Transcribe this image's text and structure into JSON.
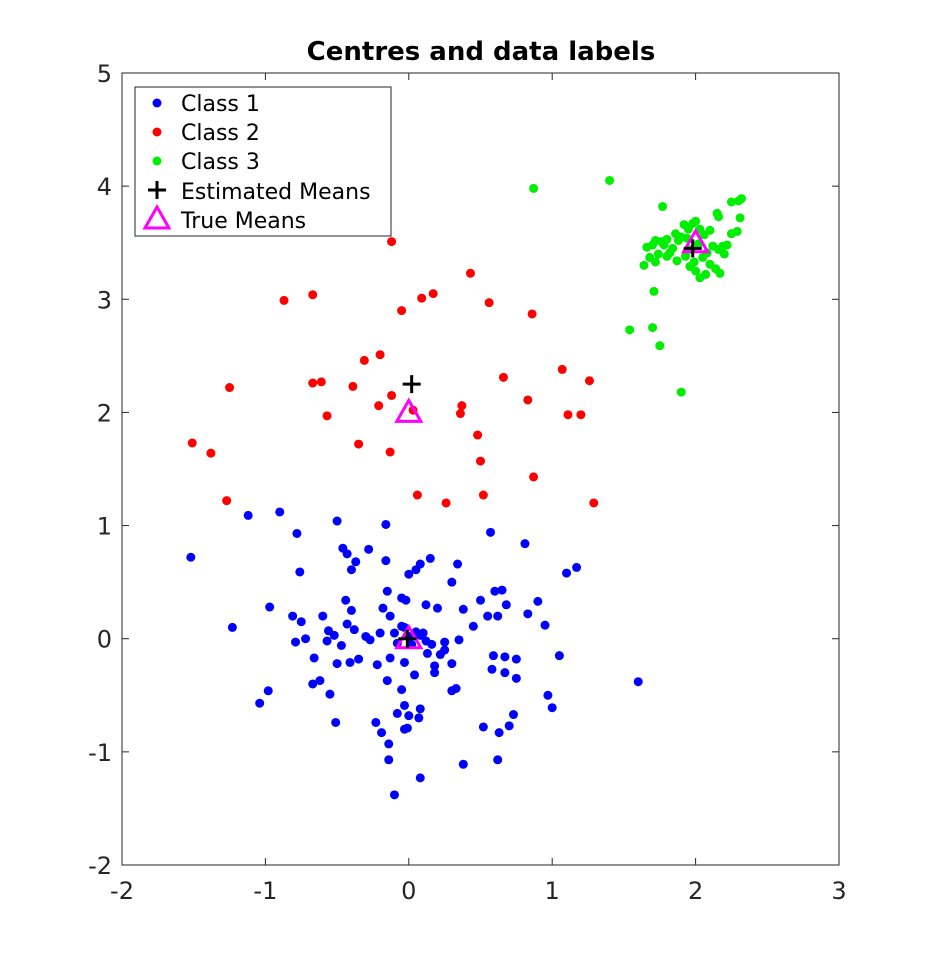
{
  "chart_data": {
    "type": "scatter",
    "title": "Centres and data labels",
    "xlabel": "",
    "ylabel": "",
    "xlim": [
      -2,
      3
    ],
    "ylim": [
      -2,
      5
    ],
    "xticks": [
      -2,
      -1,
      0,
      1,
      2,
      3
    ],
    "yticks": [
      -2,
      -1,
      0,
      1,
      2,
      3,
      4,
      5
    ],
    "xtick_labels": [
      "-2",
      "-1",
      "0",
      "1",
      "2",
      "3"
    ],
    "ytick_labels": [
      "-2",
      "-1",
      "0",
      "1",
      "2",
      "3",
      "4",
      "5"
    ],
    "grid": false,
    "legend_position": "top-left",
    "series": [
      {
        "name": "Class 1",
        "color": "#0000ff",
        "marker": "dot",
        "points": [
          [
            -1.52,
            0.72
          ],
          [
            -1.12,
            1.09
          ],
          [
            -0.9,
            1.12
          ],
          [
            -0.78,
            0.93
          ],
          [
            -0.76,
            0.59
          ],
          [
            -1.23,
            0.1
          ],
          [
            -0.97,
            0.28
          ],
          [
            -0.98,
            -0.46
          ],
          [
            -1.04,
            -0.57
          ],
          [
            -0.81,
            0.2
          ],
          [
            -0.79,
            -0.03
          ],
          [
            -0.72,
            0.0
          ],
          [
            -0.75,
            0.15
          ],
          [
            -0.66,
            -0.17
          ],
          [
            -0.6,
            0.2
          ],
          [
            -0.56,
            0.07
          ],
          [
            -0.57,
            -0.02
          ],
          [
            -0.52,
            0.03
          ],
          [
            -0.5,
            -0.22
          ],
          [
            -0.47,
            -0.06
          ],
          [
            -0.44,
            0.34
          ],
          [
            -0.4,
            0.25
          ],
          [
            -0.43,
            0.13
          ],
          [
            -0.38,
            0.08
          ],
          [
            -0.41,
            -0.21
          ],
          [
            -0.35,
            -0.18
          ],
          [
            -0.3,
            0.02
          ],
          [
            -0.27,
            -0.01
          ],
          [
            -0.22,
            -0.23
          ],
          [
            -0.2,
            0.05
          ],
          [
            -0.18,
            0.27
          ],
          [
            -0.15,
            0.42
          ],
          [
            -0.13,
            0.2
          ],
          [
            -0.1,
            0.05
          ],
          [
            -0.08,
            -0.04
          ],
          [
            -0.05,
            0.11
          ],
          [
            -0.03,
            0.1
          ],
          [
            0.0,
            0.02
          ],
          [
            0.02,
            -0.05
          ],
          [
            0.05,
            0.06
          ],
          [
            0.08,
            0.03
          ],
          [
            0.12,
            0.3
          ],
          [
            0.16,
            -0.05
          ],
          [
            0.18,
            -0.24
          ],
          [
            0.2,
            0.27
          ],
          [
            0.25,
            -0.1
          ],
          [
            0.3,
            -0.22
          ],
          [
            0.35,
            -0.01
          ],
          [
            0.38,
            0.26
          ],
          [
            0.45,
            0.11
          ],
          [
            0.5,
            0.34
          ],
          [
            0.55,
            0.2
          ],
          [
            0.6,
            0.42
          ],
          [
            0.62,
            0.2
          ],
          [
            0.65,
            0.43
          ],
          [
            0.68,
            0.3
          ],
          [
            0.75,
            -0.18
          ],
          [
            0.83,
            0.22
          ],
          [
            0.9,
            0.33
          ],
          [
            0.95,
            0.12
          ],
          [
            1.05,
            -0.15
          ],
          [
            0.97,
            -0.5
          ],
          [
            1.0,
            -0.61
          ],
          [
            1.6,
            -0.38
          ],
          [
            1.1,
            0.58
          ],
          [
            1.17,
            0.63
          ],
          [
            0.81,
            0.84
          ],
          [
            0.57,
            0.94
          ],
          [
            0.3,
            0.5
          ],
          [
            0.34,
            0.66
          ],
          [
            0.15,
            0.71
          ],
          [
            0.08,
            0.66
          ],
          [
            0.05,
            0.61
          ],
          [
            0.0,
            0.57
          ],
          [
            -0.05,
            0.36
          ],
          [
            -0.02,
            0.34
          ],
          [
            -0.16,
            0.69
          ],
          [
            -0.16,
            1.01
          ],
          [
            -0.28,
            0.79
          ],
          [
            -0.37,
            0.68
          ],
          [
            -0.4,
            0.61
          ],
          [
            -0.43,
            0.75
          ],
          [
            -0.46,
            0.8
          ],
          [
            -0.5,
            1.04
          ],
          [
            -0.67,
            -0.4
          ],
          [
            -0.62,
            -0.37
          ],
          [
            -0.55,
            -0.49
          ],
          [
            -0.51,
            -0.74
          ],
          [
            -0.23,
            -0.74
          ],
          [
            -0.19,
            -0.83
          ],
          [
            -0.14,
            -0.93
          ],
          [
            -0.14,
            -1.07
          ],
          [
            -0.1,
            -1.38
          ],
          [
            0.08,
            -1.23
          ],
          [
            0.38,
            -1.11
          ],
          [
            0.62,
            -1.07
          ],
          [
            0.63,
            -0.83
          ],
          [
            0.7,
            -0.77
          ],
          [
            0.73,
            -0.67
          ],
          [
            0.52,
            -0.78
          ],
          [
            0.07,
            -0.7
          ],
          [
            0.08,
            -0.62
          ],
          [
            0.0,
            -0.68
          ],
          [
            -0.03,
            -0.59
          ],
          [
            -0.08,
            -0.66
          ],
          [
            -0.01,
            -0.79
          ],
          [
            -0.03,
            -0.8
          ],
          [
            -0.05,
            -0.45
          ],
          [
            -0.15,
            -0.37
          ],
          [
            -0.13,
            -0.17
          ],
          [
            -0.03,
            -0.21
          ],
          [
            0.04,
            -0.32
          ],
          [
            0.13,
            -0.13
          ],
          [
            0.18,
            -0.3
          ],
          [
            0.22,
            -0.14
          ],
          [
            0.3,
            -0.46
          ],
          [
            0.33,
            -0.44
          ],
          [
            0.59,
            -0.15
          ],
          [
            0.58,
            -0.27
          ],
          [
            0.67,
            -0.3
          ],
          [
            0.67,
            -0.16
          ],
          [
            0.75,
            -0.35
          ],
          [
            0.25,
            -0.03
          ],
          [
            0.1,
            0.05
          ],
          [
            0.12,
            -0.02
          ]
        ]
      },
      {
        "name": "Class 2",
        "color": "#ff0000",
        "marker": "dot",
        "points": [
          [
            -0.12,
            3.51
          ],
          [
            0.43,
            3.23
          ],
          [
            -0.87,
            2.99
          ],
          [
            -0.67,
            3.04
          ],
          [
            0.09,
            3.01
          ],
          [
            0.17,
            3.05
          ],
          [
            -0.05,
            2.9
          ],
          [
            0.56,
            2.97
          ],
          [
            0.86,
            2.87
          ],
          [
            -0.2,
            2.51
          ],
          [
            -0.31,
            2.46
          ],
          [
            -0.67,
            2.26
          ],
          [
            -0.61,
            2.27
          ],
          [
            -1.25,
            2.22
          ],
          [
            -0.39,
            2.23
          ],
          [
            0.66,
            2.31
          ],
          [
            1.07,
            2.38
          ],
          [
            1.26,
            2.28
          ],
          [
            -0.12,
            2.15
          ],
          [
            -0.21,
            2.06
          ],
          [
            0.03,
            2.02
          ],
          [
            0.37,
            2.06
          ],
          [
            0.36,
            1.99
          ],
          [
            0.83,
            2.11
          ],
          [
            1.11,
            1.98
          ],
          [
            1.2,
            1.98
          ],
          [
            -0.57,
            1.97
          ],
          [
            -0.35,
            1.72
          ],
          [
            -1.51,
            1.73
          ],
          [
            -1.38,
            1.64
          ],
          [
            -0.13,
            1.65
          ],
          [
            0.48,
            1.8
          ],
          [
            0.5,
            1.57
          ],
          [
            0.87,
            1.43
          ],
          [
            0.06,
            1.27
          ],
          [
            0.52,
            1.27
          ],
          [
            0.26,
            1.2
          ],
          [
            -1.27,
            1.22
          ],
          [
            1.29,
            1.2
          ]
        ]
      },
      {
        "name": "Class 3",
        "color": "#00ee00",
        "marker": "dot",
        "points": [
          [
            0.87,
            3.98
          ],
          [
            1.4,
            4.05
          ],
          [
            1.77,
            3.82
          ],
          [
            2.32,
            3.89
          ],
          [
            2.3,
            3.87
          ],
          [
            2.25,
            3.86
          ],
          [
            2.31,
            3.72
          ],
          [
            2.29,
            3.6
          ],
          [
            2.25,
            3.58
          ],
          [
            2.22,
            3.48
          ],
          [
            2.19,
            3.47
          ],
          [
            2.16,
            3.73
          ],
          [
            2.15,
            3.76
          ],
          [
            2.1,
            3.61
          ],
          [
            2.06,
            3.57
          ],
          [
            2.03,
            3.62
          ],
          [
            2.0,
            3.69
          ],
          [
            1.98,
            3.67
          ],
          [
            1.95,
            3.62
          ],
          [
            1.92,
            3.66
          ],
          [
            1.9,
            3.55
          ],
          [
            1.88,
            3.52
          ],
          [
            1.86,
            3.58
          ],
          [
            1.84,
            3.45
          ],
          [
            1.82,
            3.41
          ],
          [
            1.8,
            3.53
          ],
          [
            1.78,
            3.48
          ],
          [
            1.76,
            3.51
          ],
          [
            1.74,
            3.4
          ],
          [
            1.72,
            3.52
          ],
          [
            1.7,
            3.48
          ],
          [
            1.68,
            3.37
          ],
          [
            1.66,
            3.46
          ],
          [
            1.64,
            3.3
          ],
          [
            1.72,
            3.33
          ],
          [
            1.8,
            3.38
          ],
          [
            1.87,
            3.34
          ],
          [
            1.93,
            3.38
          ],
          [
            1.96,
            3.29
          ],
          [
            2.0,
            3.25
          ],
          [
            2.03,
            3.19
          ],
          [
            2.07,
            3.22
          ],
          [
            2.1,
            3.31
          ],
          [
            2.14,
            3.27
          ],
          [
            2.17,
            3.23
          ],
          [
            2.08,
            3.41
          ],
          [
            2.05,
            3.37
          ],
          [
            2.12,
            3.47
          ],
          [
            2.16,
            3.44
          ],
          [
            2.2,
            3.4
          ],
          [
            2.02,
            3.49
          ],
          [
            1.97,
            3.44
          ],
          [
            1.94,
            3.54
          ],
          [
            1.99,
            3.33
          ],
          [
            1.71,
            3.07
          ],
          [
            1.54,
            2.73
          ],
          [
            1.7,
            2.75
          ],
          [
            1.75,
            2.59
          ],
          [
            1.9,
            2.18
          ]
        ]
      }
    ],
    "estimated_means": {
      "name": "Estimated Means",
      "color": "#000000",
      "marker": "plus",
      "points": [
        [
          -0.01,
          0.0
        ],
        [
          0.02,
          2.25
        ],
        [
          1.98,
          3.45
        ]
      ]
    },
    "true_means": {
      "name": "True Means",
      "color": "#ff00ff",
      "marker": "triangle",
      "points": [
        [
          0.0,
          0.0
        ],
        [
          0.0,
          2.0
        ],
        [
          2.0,
          3.5
        ]
      ]
    }
  }
}
